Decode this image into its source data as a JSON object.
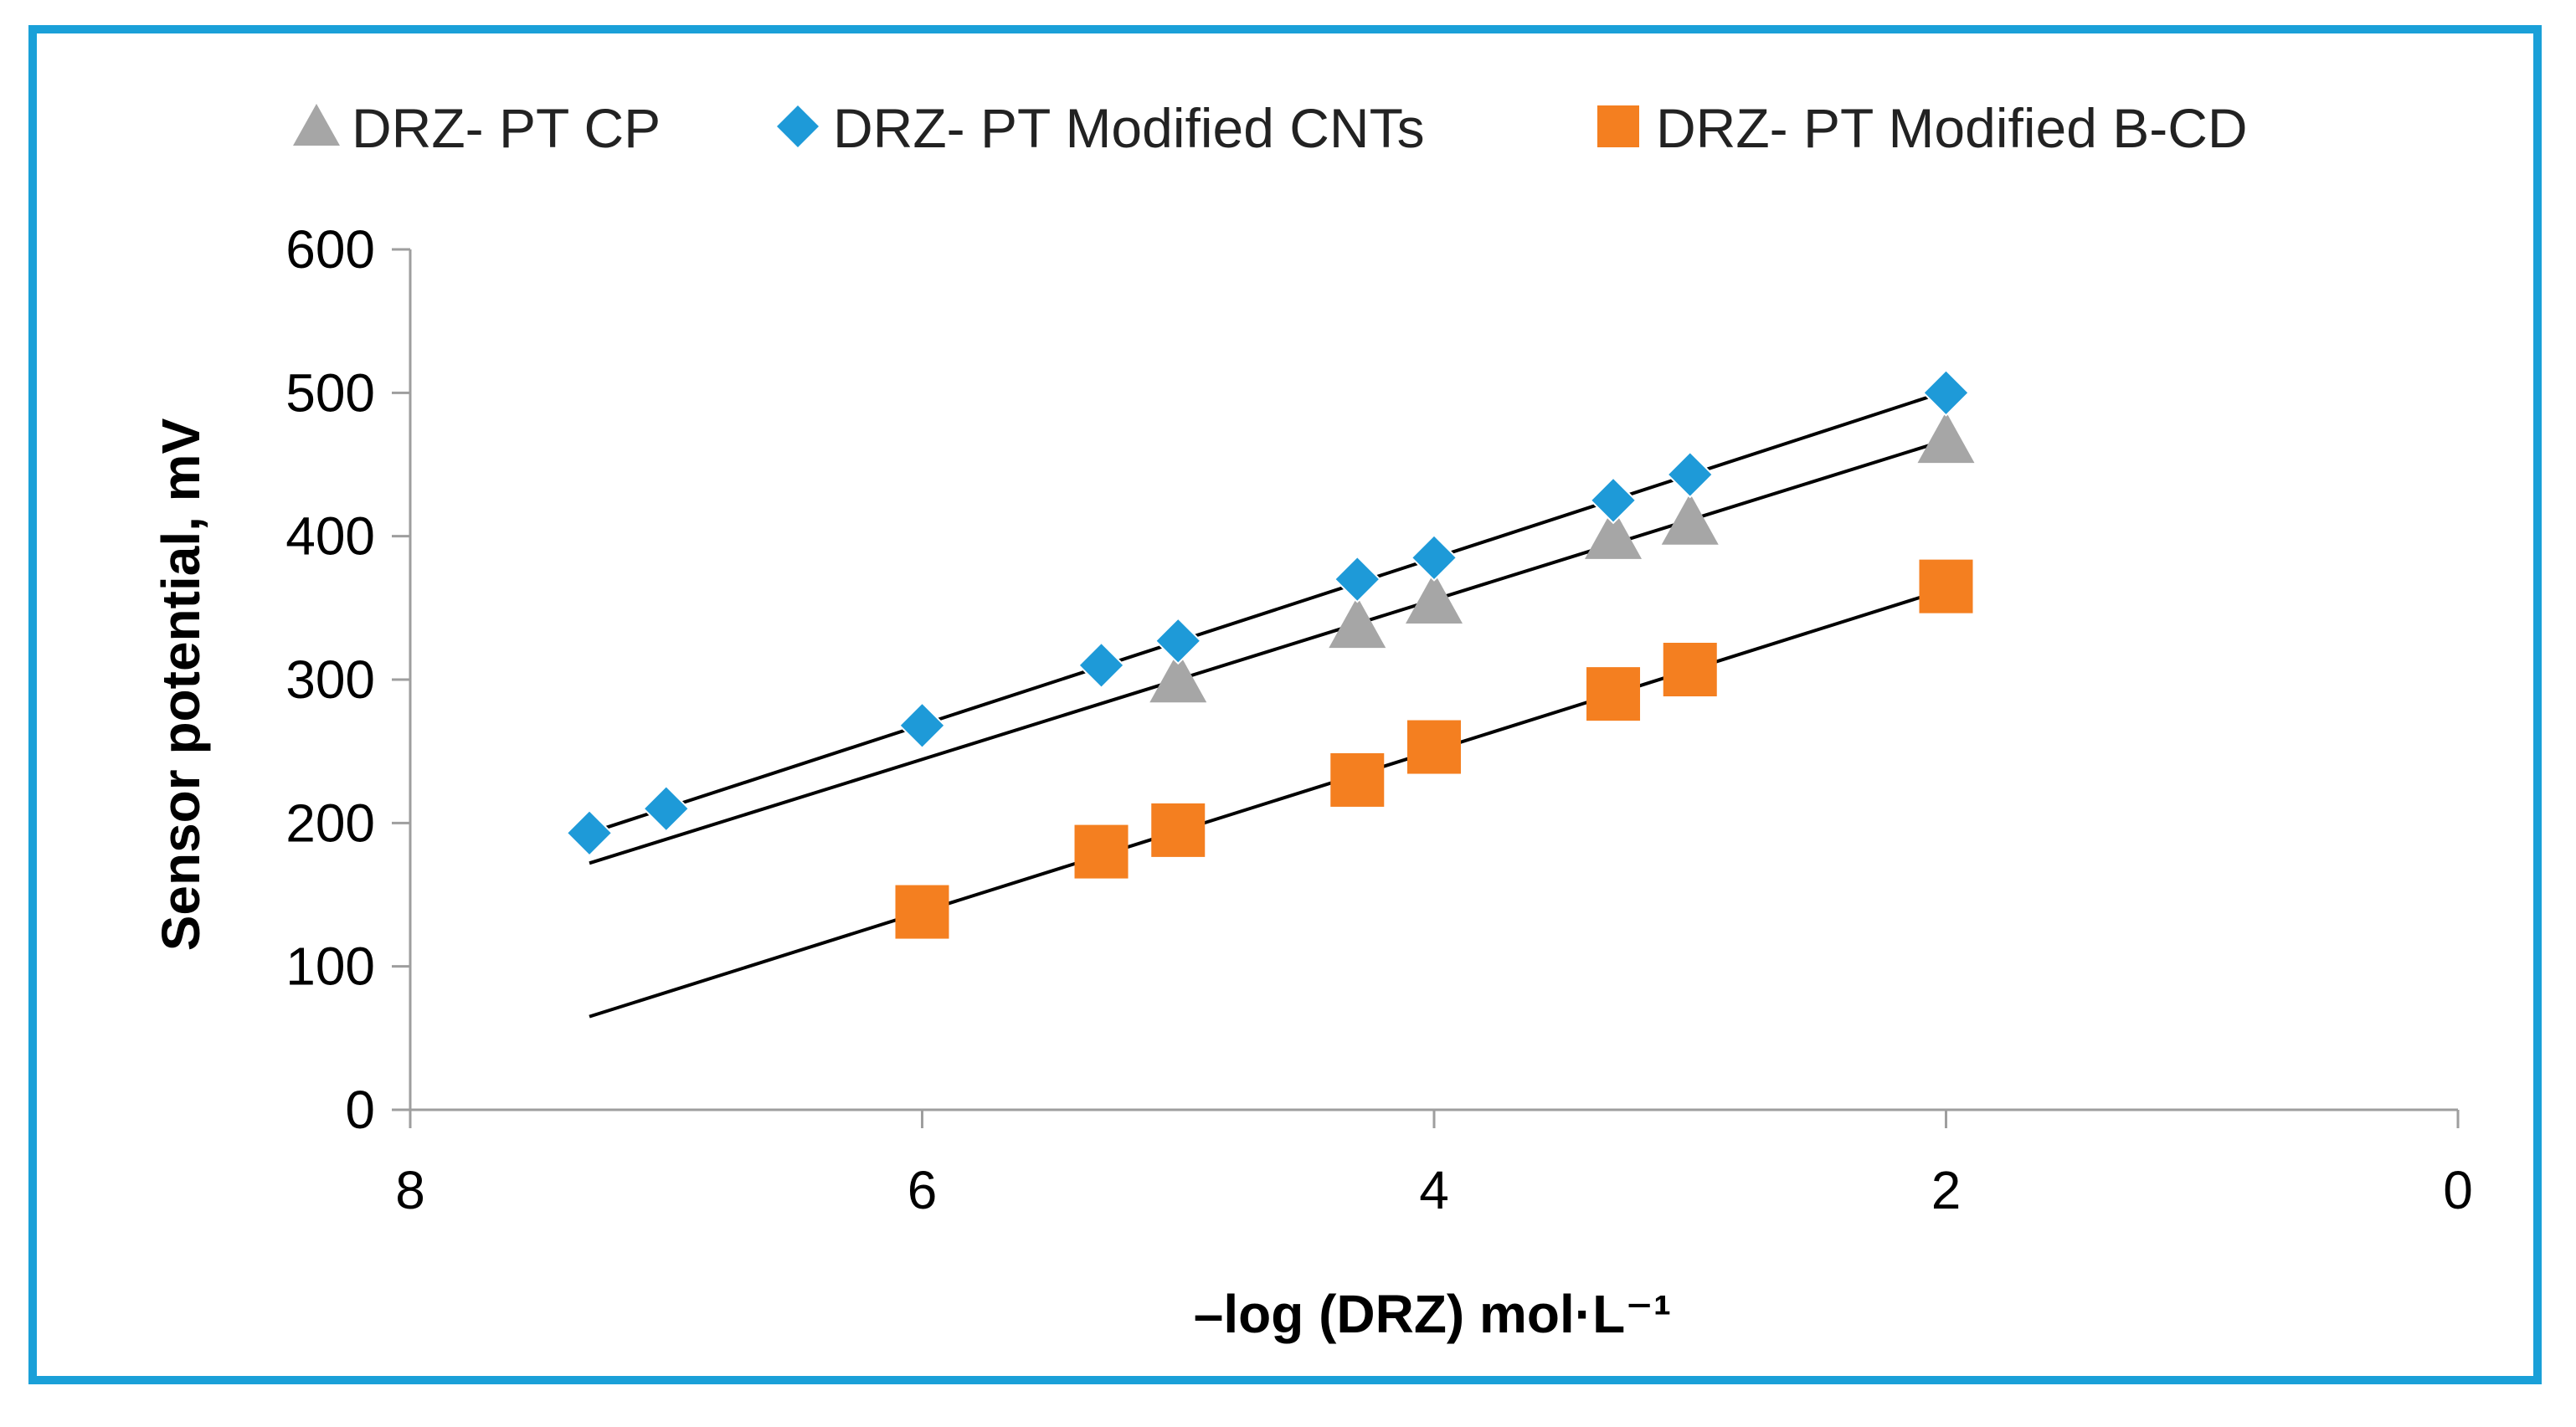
{
  "chart_data": {
    "type": "scatter",
    "title": "",
    "xlabel": "–log (DRZ) mol·L⁻¹",
    "ylabel": "Sensor potential, mV",
    "xlim": [
      8,
      0
    ],
    "ylim": [
      0,
      600
    ],
    "x_reversed": true,
    "x_ticks": [
      8,
      6,
      4,
      2,
      0
    ],
    "y_ticks": [
      0,
      100,
      200,
      300,
      400,
      500,
      600
    ],
    "legend_position": "top",
    "series": [
      {
        "name": "DRZ- PT CP",
        "marker": "triangle",
        "color": "#a6a6a6",
        "points": [
          [
            5,
            300
          ],
          [
            4.3,
            338
          ],
          [
            4,
            355
          ],
          [
            3.3,
            400
          ],
          [
            3,
            410
          ],
          [
            2,
            467
          ]
        ],
        "trendline": [
          [
            7.3,
            172
          ],
          [
            2,
            467
          ]
        ]
      },
      {
        "name": "DRZ- PT Modified CNTs",
        "marker": "diamond",
        "color": "#1e9ad8",
        "points": [
          [
            7.3,
            193
          ],
          [
            7,
            210
          ],
          [
            6,
            268
          ],
          [
            5.3,
            310
          ],
          [
            5,
            327
          ],
          [
            4.3,
            370
          ],
          [
            4,
            385
          ],
          [
            3.3,
            425
          ],
          [
            3,
            443
          ],
          [
            2,
            500
          ]
        ],
        "trendline": [
          [
            7.3,
            193
          ],
          [
            2,
            501
          ]
        ]
      },
      {
        "name": "DRZ- PT Modified B-CD",
        "marker": "square",
        "color": "#f47f20",
        "points": [
          [
            6,
            138
          ],
          [
            5.3,
            180
          ],
          [
            5,
            195
          ],
          [
            4.3,
            230
          ],
          [
            4,
            253
          ],
          [
            3.3,
            290
          ],
          [
            3,
            307
          ],
          [
            2,
            365
          ]
        ],
        "trendline": [
          [
            7.3,
            65
          ],
          [
            2,
            363
          ]
        ]
      }
    ]
  }
}
